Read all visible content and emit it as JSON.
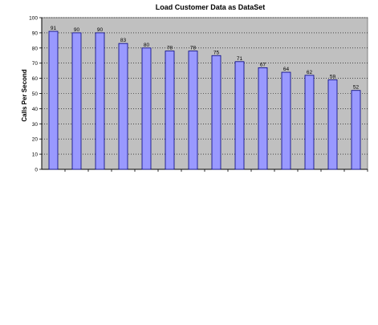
{
  "chart_data": {
    "type": "bar",
    "title": "Load Customer Data as DataSet",
    "ylabel": "Calls Per Second",
    "xlabel": "",
    "ylim": [
      0,
      100
    ],
    "yticks": [
      0,
      10,
      20,
      30,
      40,
      50,
      60,
      70,
      80,
      90,
      100
    ],
    "grid": true,
    "legend": "none",
    "categories": [
      "",
      "",
      "",
      "",
      "",
      "",
      "",
      "",
      "",
      "",
      "",
      "",
      "",
      ""
    ],
    "values": [
      91,
      90,
      90,
      83,
      80,
      78,
      78,
      75,
      71,
      67,
      64,
      62,
      59,
      52
    ],
    "colors": {
      "bar_fill": "#9999ff",
      "bar_stroke": "#000080",
      "plot_bg": "#c0c0c0",
      "grid": "#000000"
    }
  }
}
